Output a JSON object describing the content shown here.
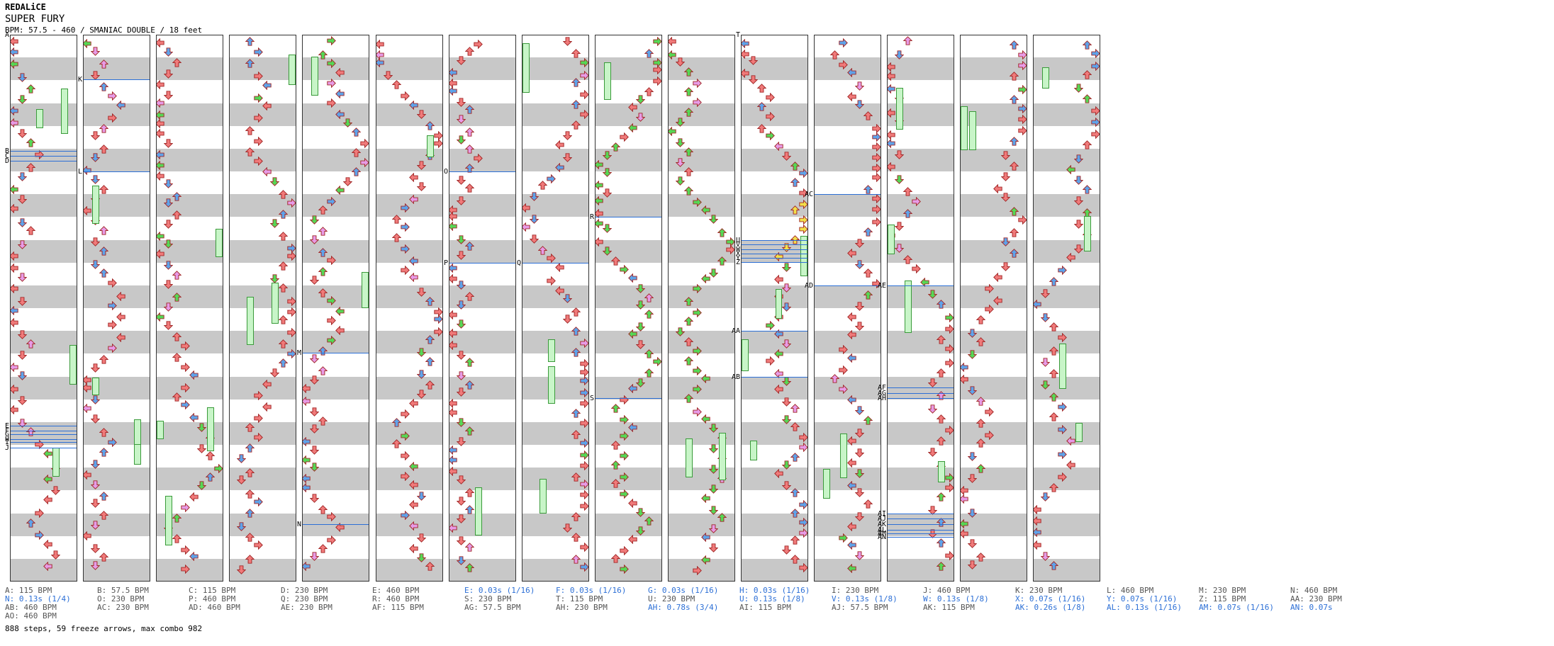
{
  "header": {
    "artist": "REDALiCE",
    "title": "SUPER FURY",
    "info": "BPM: 57.5 - 460 / SMANIAC DOUBLE / 18 feet"
  },
  "colors": {
    "quarter": "#f07a7a",
    "eighth": "#5ea3ea",
    "sixteenth": "#e79be7",
    "twelfth": "#55d855",
    "twentyfourth": "#f2e04a",
    "freeze": "#c8f5c8",
    "marker": "#2c6fd6",
    "stripe": "#c8c8c8"
  },
  "columns": [
    {
      "markers": [
        {
          "label": "A",
          "y": 0.0
        },
        {
          "label": "B",
          "y": 0.213
        },
        {
          "label": "C",
          "y": 0.222
        },
        {
          "label": "D",
          "y": 0.231
        },
        {
          "label": "E",
          "y": 0.715
        },
        {
          "label": "F",
          "y": 0.724
        },
        {
          "label": "G",
          "y": 0.731
        },
        {
          "label": "H",
          "y": 0.739
        },
        {
          "label": "I",
          "y": 0.745
        },
        {
          "label": "J",
          "y": 0.755
        }
      ]
    },
    {
      "markers": [
        {
          "label": "K",
          "y": 0.082
        },
        {
          "label": "L",
          "y": 0.25
        }
      ]
    },
    {
      "markers": []
    },
    {
      "markers": []
    },
    {
      "markers": [
        {
          "label": "M",
          "y": 0.582
        },
        {
          "label": "N",
          "y": 0.895
        }
      ]
    },
    {
      "markers": []
    },
    {
      "markers": [
        {
          "label": "O",
          "y": 0.25
        },
        {
          "label": "P",
          "y": 0.417
        }
      ]
    },
    {
      "markers": [
        {
          "label": "Q",
          "y": 0.417
        }
      ]
    },
    {
      "markers": [
        {
          "label": "R",
          "y": 0.333
        },
        {
          "label": "S",
          "y": 0.665
        }
      ]
    },
    {
      "markers": []
    },
    {
      "markers": [
        {
          "label": "T",
          "y": 0.0
        },
        {
          "label": "U",
          "y": 0.375
        },
        {
          "label": "V",
          "y": 0.384
        },
        {
          "label": "W",
          "y": 0.392
        },
        {
          "label": "X",
          "y": 0.4
        },
        {
          "label": "Y",
          "y": 0.408
        },
        {
          "label": "Z",
          "y": 0.416
        },
        {
          "label": "AA",
          "y": 0.542
        },
        {
          "label": "AB",
          "y": 0.625
        }
      ]
    },
    {
      "markers": [
        {
          "label": "AC",
          "y": 0.292
        },
        {
          "label": "AD",
          "y": 0.458
        }
      ]
    },
    {
      "markers": [
        {
          "label": "AE",
          "y": 0.458
        },
        {
          "label": "AF",
          "y": 0.645
        },
        {
          "label": "AG",
          "y": 0.655
        },
        {
          "label": "AH",
          "y": 0.665
        },
        {
          "label": "AI",
          "y": 0.875
        },
        {
          "label": "AJ",
          "y": 0.885
        },
        {
          "label": "AK",
          "y": 0.895
        },
        {
          "label": "AL",
          "y": 0.905
        },
        {
          "label": "AM",
          "y": 0.912
        },
        {
          "label": "AN",
          "y": 0.918
        }
      ]
    },
    {
      "markers": []
    },
    {
      "markers": []
    }
  ],
  "legend": {
    "rows": [
      [
        {
          "t": "A: 115 BPM",
          "k": "bpm"
        },
        {
          "t": "B: 57.5 BPM",
          "k": "bpm"
        },
        {
          "t": "C: 115 BPM",
          "k": "bpm"
        },
        {
          "t": "D: 230 BPM",
          "k": "bpm"
        },
        {
          "t": "E: 460 BPM",
          "k": "bpm"
        },
        {
          "t": "E: 0.03s (1/16)",
          "k": "stop"
        },
        {
          "t": "F: 0.03s (1/16)",
          "k": "stop"
        },
        {
          "t": "G: 0.03s (1/16)",
          "k": "stop"
        },
        {
          "t": "H: 0.03s (1/16)",
          "k": "stop"
        },
        {
          "t": "I: 230 BPM",
          "k": "bpm"
        },
        {
          "t": "J: 460 BPM",
          "k": "bpm"
        },
        {
          "t": "K: 230 BPM",
          "k": "bpm"
        },
        {
          "t": "L: 460 BPM",
          "k": "bpm"
        },
        {
          "t": "M: 230 BPM",
          "k": "bpm"
        },
        {
          "t": "N: 460 BPM",
          "k": "bpm"
        }
      ],
      [
        {
          "t": "N: 0.13s (1/4)",
          "k": "stop"
        },
        {
          "t": "O: 230 BPM",
          "k": "bpm"
        },
        {
          "t": "P: 460 BPM",
          "k": "bpm"
        },
        {
          "t": "Q: 230 BPM",
          "k": "bpm"
        },
        {
          "t": "R: 460 BPM",
          "k": "bpm"
        },
        {
          "t": "S: 230 BPM",
          "k": "bpm"
        },
        {
          "t": "T: 115 BPM",
          "k": "bpm"
        },
        {
          "t": "U: 230 BPM",
          "k": "bpm"
        },
        {
          "t": "U: 0.13s (1/8)",
          "k": "stop"
        },
        {
          "t": "V: 0.13s (1/8)",
          "k": "stop"
        },
        {
          "t": "W: 0.13s (1/8)",
          "k": "stop"
        },
        {
          "t": "X: 0.07s (1/16)",
          "k": "stop"
        },
        {
          "t": "Y: 0.07s (1/16)",
          "k": "stop"
        },
        {
          "t": "Z: 115 BPM",
          "k": "bpm"
        },
        {
          "t": "AA: 230 BPM",
          "k": "bpm"
        }
      ],
      [
        {
          "t": "AB: 460 BPM",
          "k": "bpm"
        },
        {
          "t": "AC: 230 BPM",
          "k": "bpm"
        },
        {
          "t": "AD: 460 BPM",
          "k": "bpm"
        },
        {
          "t": "AE: 230 BPM",
          "k": "bpm"
        },
        {
          "t": "AF: 115 BPM",
          "k": "bpm"
        },
        {
          "t": "AG: 57.5 BPM",
          "k": "bpm"
        },
        {
          "t": "AH: 230 BPM",
          "k": "bpm"
        },
        {
          "t": "AH: 0.78s (3/4)",
          "k": "stop"
        },
        {
          "t": "AI: 115 BPM",
          "k": "bpm"
        },
        {
          "t": "AJ: 57.5 BPM",
          "k": "bpm"
        },
        {
          "t": "AK: 115 BPM",
          "k": "bpm"
        },
        {
          "t": "AK: 0.26s (1/8)",
          "k": "stop"
        },
        {
          "t": "AL: 0.13s (1/16)",
          "k": "stop"
        },
        {
          "t": "AM: 0.07s (1/16)",
          "k": "stop"
        },
        {
          "t": "AN: 0.07s",
          "k": "stop"
        }
      ],
      [
        {
          "t": "AO: 460 BPM",
          "k": "bpm"
        }
      ]
    ]
  },
  "stats": "888 steps, 59 freeze arrows, max combo 982"
}
